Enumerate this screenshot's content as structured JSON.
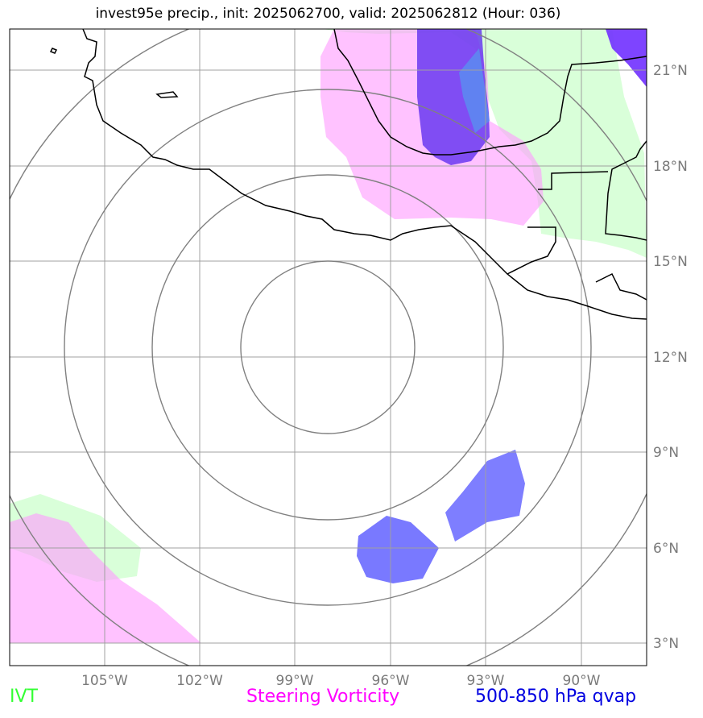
{
  "title": "invest95e precip., init: 2025062700, valid: 2025062812 (Hour: 036)",
  "axes": {
    "lon_ticks": [
      "105°W",
      "102°W",
      "99°W",
      "96°W",
      "93°W",
      "90°W"
    ],
    "lat_ticks": [
      "21°N",
      "18°N",
      "15°N",
      "12°N",
      "9°N",
      "6°N",
      "3°N"
    ]
  },
  "legend": {
    "ivt": {
      "label": "IVT",
      "color": "#33ff33"
    },
    "steering": {
      "label": "Steering Vorticity",
      "color": "#ff00ff"
    },
    "qvap": {
      "label": "500-850 hPa qvap",
      "color": "#0000e0"
    }
  },
  "colors": {
    "ivt_fill": "#ccffcc",
    "vorticity_fill": "#ffaaff",
    "qvap_fill": "#6060ff",
    "qvap_dark": "#7a2bff",
    "gridline": "#a0a0a0",
    "range_ring": "#808080",
    "coast": "#000000"
  }
}
